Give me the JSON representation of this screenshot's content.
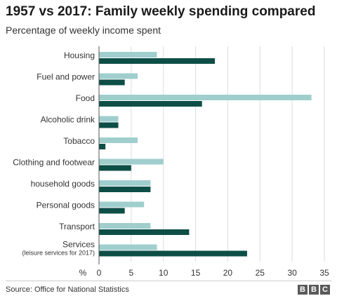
{
  "title": "1957 vs 2017: Family weekly spending compared",
  "subtitle": "Percentage of weekly income spent",
  "source": "Source: Office for National Statistics",
  "logo": [
    "B",
    "B",
    "C"
  ],
  "colors": {
    "series_1957": "#9fcecd",
    "series_2017": "#0d4e47"
  },
  "chart_data": {
    "type": "bar",
    "orientation": "horizontal",
    "categories": [
      {
        "label": "Housing",
        "sublabel": ""
      },
      {
        "label": "Fuel and power",
        "sublabel": ""
      },
      {
        "label": "Food",
        "sublabel": ""
      },
      {
        "label": "Alcoholic drink",
        "sublabel": ""
      },
      {
        "label": "Tobacco",
        "sublabel": ""
      },
      {
        "label": "Clothing and footwear",
        "sublabel": ""
      },
      {
        "label": "household goods",
        "sublabel": ""
      },
      {
        "label": "Personal goods",
        "sublabel": ""
      },
      {
        "label": "Transport",
        "sublabel": ""
      },
      {
        "label": "Services",
        "sublabel": "(leisure services for 2017)"
      }
    ],
    "series": [
      {
        "key": "s1957",
        "values": [
          9,
          6,
          33,
          3,
          6,
          10,
          8,
          7,
          8,
          9
        ]
      },
      {
        "key": "s2017",
        "values": [
          18,
          4,
          16,
          3,
          1,
          5,
          8,
          4,
          14,
          23
        ]
      }
    ],
    "xlim": [
      0,
      35
    ],
    "xticks": [
      0,
      5,
      10,
      15,
      20,
      25,
      30,
      35
    ],
    "xunit": "%",
    "grid": true
  }
}
